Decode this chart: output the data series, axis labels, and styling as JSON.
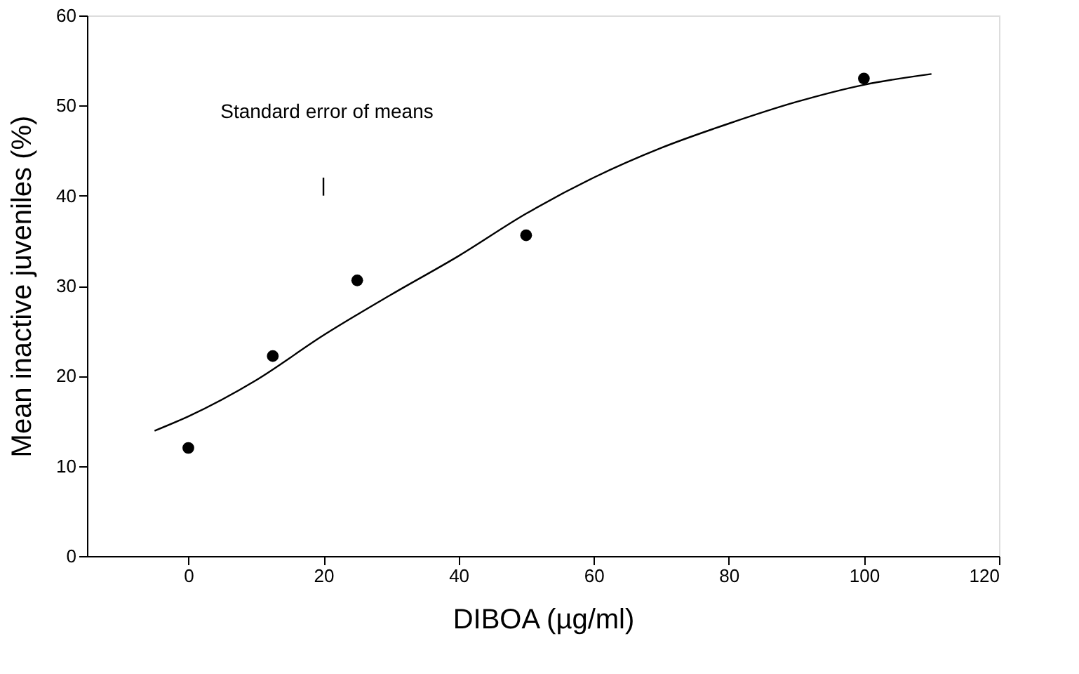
{
  "chart_data": {
    "type": "scatter",
    "xlabel": "DIBOA (µg/ml)",
    "ylabel": "Mean inactive juveniles (%)",
    "xlim": [
      -15,
      120
    ],
    "xticks": [
      0,
      20,
      40,
      60,
      80,
      100,
      120
    ],
    "ylim": [
      0,
      60
    ],
    "yticks": [
      0,
      10,
      20,
      30,
      40,
      50,
      60
    ],
    "grid": false,
    "annotations": [
      "Standard error of means"
    ],
    "series": [
      {
        "marker": "circle",
        "color": "#000000",
        "x": [
          0,
          12.5,
          25,
          50,
          100
        ],
        "values": [
          12,
          22.2,
          30.6,
          35.6,
          53
        ]
      },
      {
        "type": "line",
        "line_style": "solid",
        "marker": "none",
        "color": "#000000",
        "x": [
          -5,
          0,
          10,
          20,
          30,
          40,
          50,
          60,
          70,
          80,
          90,
          100,
          110
        ],
        "values": [
          13.9,
          15.5,
          19.5,
          24.5,
          29,
          33.3,
          38,
          42,
          45.3,
          48,
          50.4,
          52.3,
          53.5
        ]
      },
      {
        "type": "line",
        "line_style": "solid",
        "marker": "none",
        "color": "#000000",
        "x": [
          20,
          20
        ],
        "values": [
          40,
          42
        ]
      }
    ]
  }
}
